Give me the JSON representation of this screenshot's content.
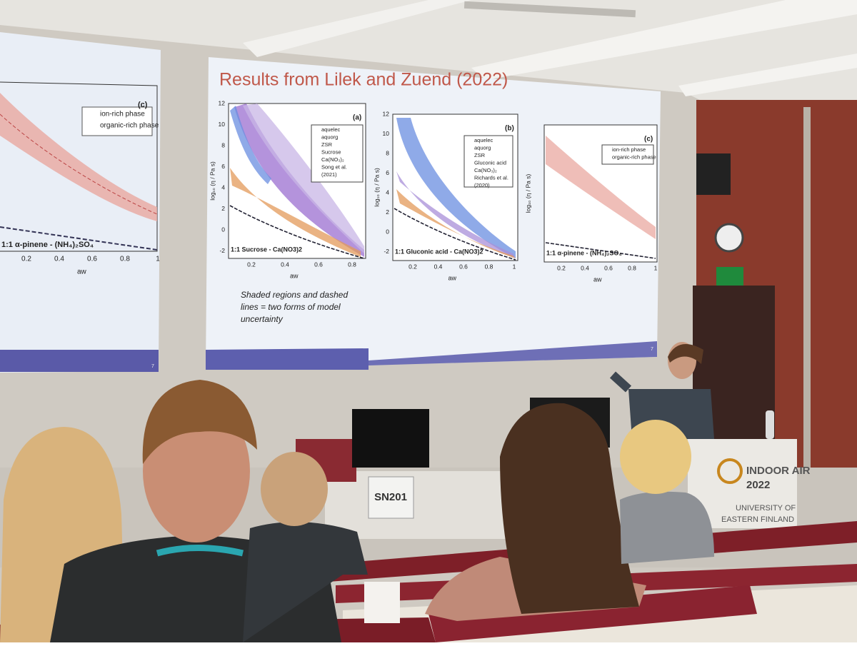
{
  "left_screen": {
    "panel_label": "(c)",
    "legend": [
      "ion-rich phase",
      "organic-rich phase"
    ],
    "caption": "1:1 α-pinene - (NH₄)₂SO₄",
    "x_ticks": [
      "0.2",
      "0.4",
      "0.6",
      "0.8",
      "1"
    ],
    "x_label": "aw",
    "page_number": "7"
  },
  "slide": {
    "title": "Results from Lilek and Zuend (2022)",
    "panels": [
      {
        "label": "(a)",
        "legend": [
          "aquelec",
          "aquorg",
          "ZSR",
          "Sucrose",
          "Ca(NO₃)₂",
          "Song et al.",
          "(2021)"
        ],
        "caption": "1:1 Sucrose - Ca(NO3)2",
        "y_label": "log₁₀ (η / Pa s)",
        "y_ticks": [
          "12",
          "10",
          "8",
          "6",
          "4",
          "2",
          "0",
          "-2"
        ],
        "x_ticks": [
          "0.2",
          "0.4",
          "0.6",
          "0.8"
        ],
        "x_label": "aw"
      },
      {
        "label": "(b)",
        "legend": [
          "aquelec",
          "aquorg",
          "ZSR",
          "Gluconic acid",
          "Ca(NO₃)₂",
          "Richards et al.",
          "(2020)"
        ],
        "caption": "1:1 Gluconic acid - Ca(NO3)2",
        "y_label": "log₁₀ (η / Pa s)",
        "y_ticks": [
          "12",
          "10",
          "8",
          "6",
          "4",
          "2",
          "0",
          "-2"
        ],
        "x_ticks": [
          "0.2",
          "0.4",
          "0.6",
          "0.8",
          "1"
        ],
        "x_label": "aw"
      },
      {
        "label": "(c)",
        "legend": [
          "ion-rich phase",
          "organic-rich phase"
        ],
        "caption": "1:1 α-pinene - (NH₄)₂SO₄",
        "y_label": "log₁₀ (η / Pa s)",
        "y_ticks": [],
        "x_ticks": [
          "0.2",
          "0.4",
          "0.6",
          "0.8",
          "1"
        ],
        "x_label": "aw"
      }
    ],
    "note": [
      "Shaded regions and dashed",
      "lines = two forms of model",
      "uncertainty"
    ],
    "page_number": "7"
  },
  "room": {
    "room_sign": "SN201",
    "podium": [
      "INDOOR AIR",
      "2022",
      "UNIVERSITY OF",
      "EASTERN FINLAND"
    ]
  }
}
